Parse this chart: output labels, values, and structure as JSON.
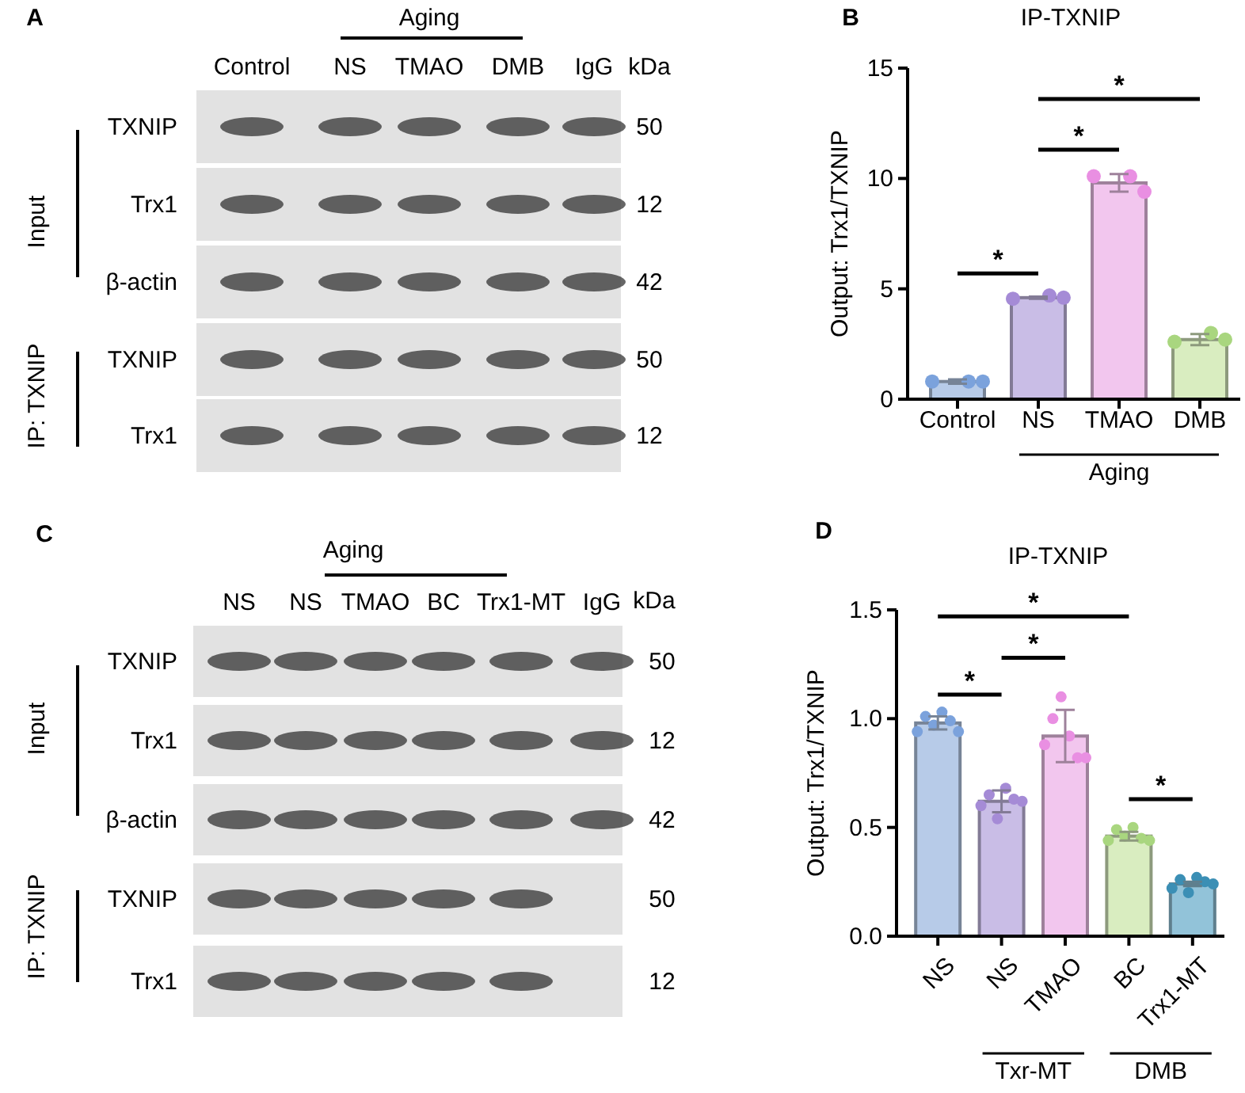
{
  "chart_data": [
    {
      "type": "other",
      "categories": [
        "Control",
        "NS",
        "TMAO",
        "DMB",
        "IgG"
      ],
      "y_categories": [
        "TXNIP",
        "Trx1",
        "β-actin",
        "TXNIP",
        "Trx1"
      ],
      "y2_categories": [
        "50",
        "12",
        "42",
        "50",
        "12"
      ],
      "annotations": [
        "A",
        "Aging",
        "kDa",
        "Input",
        "IP: TXNIP"
      ]
    },
    {
      "type": "bar",
      "title": "IP-TXNIP",
      "ylabel": "Output: Trx1/TXNIP",
      "categories": [
        "Control",
        "NS",
        "TMAO",
        "DMB"
      ],
      "ylim": [
        0,
        15
      ],
      "yticks": [
        0,
        5,
        10,
        15
      ],
      "series": [
        {
          "type": "bar",
          "values": [
            0.8,
            4.6,
            9.8,
            2.7
          ],
          "colors": [
            "#b7cbe8",
            "#c9bde6",
            "#f2c6ee",
            "#d9edc0"
          ],
          "errors": [
            0.1,
            0.05,
            0.4,
            0.25
          ]
        },
        {
          "type": "scatter",
          "marker": "circle",
          "values": [
            0.8,
            4.55,
            10.1,
            2.6
          ],
          "colors": [
            "#7ba2dc",
            "#a58bd6",
            "#e98fe2",
            "#a9d67f"
          ]
        },
        {
          "type": "scatter",
          "marker": "circle",
          "values": [
            0.8,
            4.7,
            10.1,
            3.0
          ],
          "colors": [
            "#7ba2dc",
            "#a58bd6",
            "#e98fe2",
            "#a9d67f"
          ]
        },
        {
          "type": "scatter",
          "marker": "circle",
          "values": [
            0.8,
            4.6,
            9.4,
            2.7
          ],
          "colors": [
            "#7ba2dc",
            "#a58bd6",
            "#e98fe2",
            "#a9d67f"
          ]
        }
      ],
      "annotations": [
        "B",
        "*",
        "*",
        "*",
        "Aging"
      ]
    },
    {
      "type": "other",
      "categories": [
        "NS",
        "NS",
        "TMAO",
        "BC",
        "Trx1-MT",
        "IgG"
      ],
      "y_categories": [
        "TXNIP",
        "Trx1",
        "β-actin",
        "TXNIP",
        "Trx1"
      ],
      "y2_categories": [
        "50",
        "12",
        "42",
        "50",
        "12"
      ],
      "annotations": [
        "C",
        "Aging",
        "kDa",
        "Input",
        "IP: TXNIP"
      ]
    },
    {
      "type": "bar",
      "title": "IP-TXNIP",
      "ylabel": "Output: Trx1/TXNIP",
      "categories": [
        "NS",
        "NS",
        "TMAO",
        "BC",
        "Trx1-MT"
      ],
      "ylim": [
        0,
        1.5
      ],
      "yticks": [
        {
          "value": 0,
          "label": "0.0"
        },
        {
          "value": 0.5,
          "label": "0.5"
        },
        {
          "value": 1,
          "label": "1.0"
        },
        {
          "value": 1.5,
          "label": "1.5"
        }
      ],
      "series": [
        {
          "type": "bar",
          "values": [
            0.98,
            0.62,
            0.92,
            0.46,
            0.24
          ],
          "colors": [
            "#b7cbe8",
            "#c9bde6",
            "#f2c6ee",
            "#d9edc0",
            "#92c3d9"
          ],
          "errors": [
            0.03,
            0.05,
            0.12,
            0.02,
            0.01
          ]
        },
        {
          "type": "scatter",
          "marker": "circle",
          "values": [
            0.94,
            0.6,
            0.88,
            0.44,
            0.22
          ],
          "colors": [
            "#7ba2dc",
            "#a58bd6",
            "#e98fe2",
            "#a9d67f",
            "#3b8fb5"
          ]
        },
        {
          "type": "scatter",
          "marker": "circle",
          "values": [
            1.01,
            0.65,
            1.0,
            0.49,
            0.26
          ],
          "colors": [
            "#7ba2dc",
            "#a58bd6",
            "#e98fe2",
            "#a9d67f",
            "#3b8fb5"
          ]
        },
        {
          "type": "scatter",
          "marker": "circle",
          "values": [
            0.97,
            0.54,
            1.1,
            0.46,
            0.2
          ],
          "colors": [
            "#7ba2dc",
            "#a58bd6",
            "#e98fe2",
            "#a9d67f",
            "#3b8fb5"
          ]
        },
        {
          "type": "scatter",
          "marker": "circle",
          "values": [
            1.03,
            0.68,
            0.92,
            0.5,
            0.27
          ],
          "colors": [
            "#7ba2dc",
            "#a58bd6",
            "#e98fe2",
            "#a9d67f",
            "#3b8fb5"
          ]
        },
        {
          "type": "scatter",
          "marker": "circle",
          "values": [
            0.99,
            0.63,
            0.82,
            0.45,
            0.25
          ],
          "colors": [
            "#7ba2dc",
            "#a58bd6",
            "#e98fe2",
            "#a9d67f",
            "#3b8fb5"
          ]
        },
        {
          "type": "scatter",
          "marker": "circle",
          "values": [
            0.94,
            0.62,
            0.82,
            0.44,
            0.24
          ],
          "colors": [
            "#7ba2dc",
            "#a58bd6",
            "#e98fe2",
            "#a9d67f",
            "#3b8fb5"
          ]
        }
      ],
      "annotations": [
        "D",
        "*",
        "*",
        "*",
        "*",
        "Txr-MT",
        "DMB"
      ]
    }
  ]
}
